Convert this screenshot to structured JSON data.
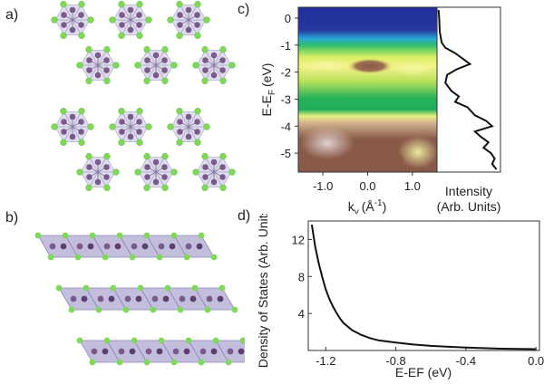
{
  "panel_labels": {
    "a": "a)",
    "b": "b)",
    "c": "c)",
    "d": "d)"
  },
  "colors": {
    "ligand": "#7ed957",
    "metal": "#7a5a8c",
    "octahedron": "#b9b3d6",
    "arpes_top": "#1f2f9a",
    "arpes_green": "#23b45a",
    "arpes_yellow": "#f1f27a",
    "arpes_brown": "#8a5a49",
    "curve": "#111111"
  },
  "panel_c": {
    "ylabel": "E-E",
    "ylabel_sub": "F",
    "ylabel_unit": "(eV)",
    "yticks": [
      "0",
      "-1",
      "-2",
      "-3",
      "-4",
      "-5"
    ],
    "xlabel_main": "k",
    "xlabel_sub": "y",
    "xlabel_unit_open": "(Å",
    "xlabel_unit_sup": "-1",
    "xlabel_unit_close": ")",
    "xticks": [
      "-1.0",
      "0.0",
      "1.0"
    ],
    "intensity_label_1": "Intensity",
    "intensity_label_2": "(Arb. Units)"
  },
  "chart_data": {
    "type": "line",
    "xlabel": "E-EF (eV)",
    "ylabel": "Density of States (Arb. Units)",
    "xlim": [
      -1.3,
      0.02
    ],
    "ylim": [
      0,
      14
    ],
    "xticks": [
      "-1.2",
      "-0.8",
      "-0.4",
      "0.0"
    ],
    "yticks": [
      "4",
      "8",
      "12"
    ],
    "x": [
      -1.28,
      -1.26,
      -1.24,
      -1.22,
      -1.2,
      -1.18,
      -1.16,
      -1.14,
      -1.12,
      -1.1,
      -1.05,
      -1.0,
      -0.95,
      -0.9,
      -0.8,
      -0.7,
      -0.6,
      -0.5,
      -0.4,
      -0.3,
      -0.2,
      -0.1,
      0.0
    ],
    "values": [
      13.6,
      11.2,
      9.4,
      7.9,
      6.6,
      5.6,
      4.8,
      4.1,
      3.5,
      3.0,
      2.2,
      1.7,
      1.35,
      1.1,
      0.85,
      0.65,
      0.5,
      0.4,
      0.32,
      0.25,
      0.2,
      0.17,
      0.15
    ]
  },
  "intensity_profile": {
    "energy": [
      0.3,
      0,
      -0.5,
      -0.9,
      -1.1,
      -1.3,
      -1.5,
      -1.7,
      -1.9,
      -2.1,
      -2.4,
      -2.7,
      -2.9,
      -3.1,
      -3.3,
      -3.6,
      -3.8,
      -4.0,
      -4.2,
      -4.4,
      -4.6,
      -4.8,
      -5.0,
      -5.2,
      -5.4,
      -5.6
    ],
    "intensity": [
      0.01,
      0.02,
      0.03,
      0.06,
      0.12,
      0.28,
      0.4,
      0.52,
      0.3,
      0.15,
      0.12,
      0.22,
      0.34,
      0.28,
      0.48,
      0.6,
      0.78,
      0.88,
      0.6,
      0.7,
      0.82,
      0.74,
      0.86,
      0.92,
      0.88,
      0.95
    ]
  }
}
